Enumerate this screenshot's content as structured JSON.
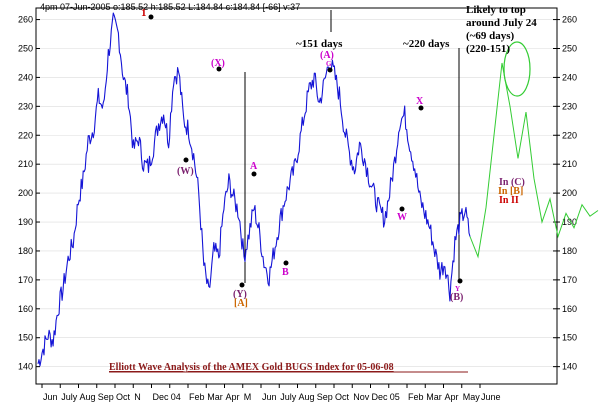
{
  "header": {
    "quote": "4pm 07-Jun-2005 o:185.52 h:185.52 L:184.84 c:184.84 [-66] v:37"
  },
  "colors": {
    "price": "#1515d6",
    "projection": "#33cc33",
    "wave_label": "#cc00cc",
    "alt_label": "#cc6600",
    "roman_label": "#cc0000",
    "c_label": "#7a1f6e",
    "title": "#8b1a1a",
    "marker_line": "#000000"
  },
  "annotations": {
    "forecast_line1": "Likely to top",
    "forecast_line2": "around July 24",
    "forecast_line3": "(~69 days)",
    "forecast_line4": "(220-151)",
    "days_151": "~151 days",
    "days_220": "~220 days",
    "in_c": "In (C)",
    "in_b": "In [B]",
    "in_ii": "In II"
  },
  "wave_labels": {
    "l1": "1",
    "w": "(W)",
    "x": "(X)",
    "y": "(Y)",
    "bracket_a": "[A]",
    "a": "A",
    "b": "B",
    "paren_a": "(A)",
    "g": "G",
    "w2": "W",
    "x2": "X",
    "y2": "Y",
    "paren_b": "(B)"
  },
  "chart_data": {
    "type": "line",
    "title": "Elliott Wave Analysis of the AMEX Gold BUGS Index for 05-06-08",
    "ylim": [
      134,
      264
    ],
    "y_ticks": [
      140,
      150,
      160,
      170,
      180,
      190,
      200,
      210,
      220,
      230,
      240,
      250,
      260
    ],
    "x_ticks": [
      "Jun",
      "July",
      "Aug",
      "Sep",
      "Oct",
      "N",
      "Dec",
      "04",
      "Feb",
      "Mar",
      "Apr",
      "M",
      "Jun",
      "July",
      "Aug",
      "Sep",
      "Oct",
      "Nov",
      "Dec",
      "05",
      "Feb",
      "Mar",
      "Apr",
      "May",
      "June"
    ],
    "series": [
      {
        "values": [
          141,
          146,
          151,
          149,
          160,
          167,
          177,
          183,
          197,
          205,
          218,
          222,
          233,
          229,
          248,
          259,
          255,
          240,
          233,
          215,
          219,
          210,
          209,
          216,
          224,
          228,
          218,
          240,
          242,
          225,
          222,
          213,
          200,
          175,
          165,
          180,
          178,
          195,
          204,
          198,
          193,
          178,
          186,
          195,
          187,
          176,
          171,
          180,
          189,
          197,
          203,
          208,
          217,
          227,
          236,
          240,
          231,
          238,
          246,
          241,
          234,
          222,
          214,
          208,
          217,
          212,
          205,
          199,
          194,
          191,
          200,
          211,
          225,
          227,
          217,
          209,
          198,
          193,
          188,
          180,
          173,
          176,
          166,
          183,
          190,
          194,
          185
        ]
      }
    ],
    "projection": {
      "values": [
        185,
        178,
        195,
        220,
        245,
        230,
        212,
        228,
        205,
        190,
        198,
        185,
        193,
        188,
        196,
        192,
        194
      ]
    }
  }
}
